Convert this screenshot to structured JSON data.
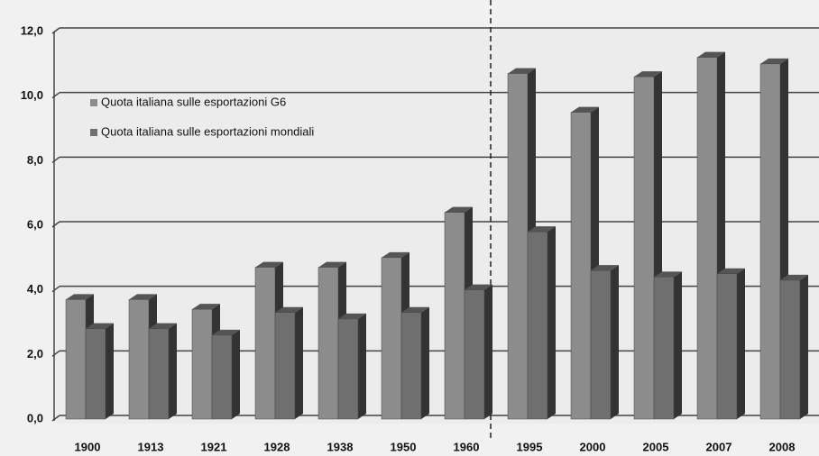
{
  "chart_data": {
    "type": "bar",
    "categories": [
      "1900",
      "1913",
      "1921",
      "1928",
      "1938",
      "1950",
      "1960",
      "1995",
      "2000",
      "2005",
      "2007",
      "2008"
    ],
    "series": [
      {
        "name": "Quota italiana sulle esportazioni  G6",
        "color": "#8c8c8c",
        "values": [
          3.7,
          3.7,
          3.4,
          4.7,
          4.7,
          5.0,
          6.4,
          10.7,
          9.5,
          10.6,
          11.2,
          11.0
        ]
      },
      {
        "name": "Quota italiana sulle esportazioni mondiali",
        "color": "#6f6f6f",
        "values": [
          2.8,
          2.8,
          2.6,
          3.3,
          3.1,
          3.3,
          4.0,
          5.8,
          4.6,
          4.4,
          4.5,
          4.3
        ]
      }
    ],
    "ylim": [
      0,
      12
    ],
    "yticks": [
      {
        "value": 0,
        "label": "0,0"
      },
      {
        "value": 2,
        "label": "2,0"
      },
      {
        "value": 4,
        "label": "4,0"
      },
      {
        "value": 6,
        "label": "6,0"
      },
      {
        "value": 8,
        "label": "8,0"
      },
      {
        "value": 10,
        "label": "10,0"
      },
      {
        "value": 12,
        "label": "12,0"
      }
    ],
    "grid": true,
    "legend": "upper left"
  }
}
